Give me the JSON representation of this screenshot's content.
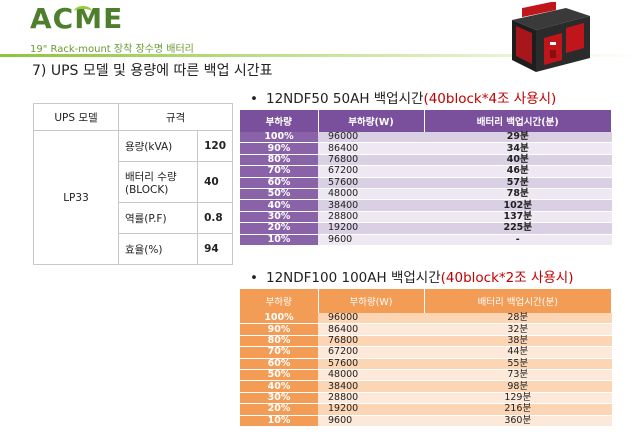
{
  "header": {
    "logo": "ACME",
    "subtitle": "19\" Rack-mount 장착 장수명 배터리",
    "section_title": "7) UPS 모델 및 용량에 따른 백업 시간표"
  },
  "spec_table": {
    "headers": [
      "UPS 모델",
      "규격"
    ],
    "model": "LP33",
    "rows": [
      {
        "label": "용량(kVA)",
        "value": "120"
      },
      {
        "label": "배터리 수량\n(BLOCK)",
        "value": "40"
      },
      {
        "label": "역률(P.F)",
        "value": "0.8"
      },
      {
        "label": "효율(%)",
        "value": "94"
      }
    ]
  },
  "table1": {
    "title_main": "12NDF50 50AH 백업시간",
    "title_red": "(40block*4조 사용시)",
    "headers": [
      "부하량",
      "부하량(W)",
      "배터리 백업시간(분)"
    ],
    "rows": [
      [
        "100%",
        "96000",
        "29분"
      ],
      [
        "90%",
        "86400",
        "34분"
      ],
      [
        "80%",
        "76800",
        "40분"
      ],
      [
        "70%",
        "67200",
        "46분"
      ],
      [
        "60%",
        "57600",
        "57분"
      ],
      [
        "50%",
        "48000",
        "78분"
      ],
      [
        "40%",
        "38400",
        "102분"
      ],
      [
        "30%",
        "28800",
        "137분"
      ],
      [
        "20%",
        "19200",
        "225분"
      ],
      [
        "10%",
        "9600",
        "-"
      ]
    ]
  },
  "table2": {
    "title_main": "12NDF100 100AH 백업시간",
    "title_red": "(40block*2조 사용시)",
    "headers": [
      "부하량",
      "부하량(W)",
      "배터리 백업시간(분)"
    ],
    "rows": [
      [
        "100%",
        "96000",
        "28분"
      ],
      [
        "90%",
        "86400",
        "32분"
      ],
      [
        "80%",
        "76800",
        "38분"
      ],
      [
        "70%",
        "67200",
        "44분"
      ],
      [
        "60%",
        "57600",
        "55분"
      ],
      [
        "50%",
        "48000",
        "73분"
      ],
      [
        "40%",
        "38400",
        "98분"
      ],
      [
        "30%",
        "28800",
        "129분"
      ],
      [
        "20%",
        "19200",
        "216분"
      ],
      [
        "10%",
        "9600",
        "360분"
      ]
    ]
  }
}
